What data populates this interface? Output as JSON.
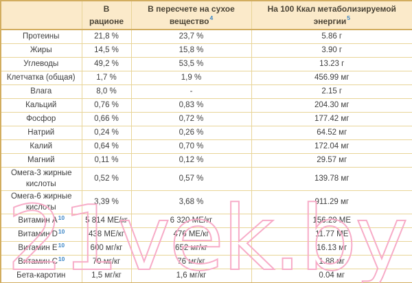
{
  "table": {
    "column_headers": [
      {
        "label": "",
        "sup": null
      },
      {
        "label": "В рационе",
        "sup": null
      },
      {
        "label": "В пересчете на сухое вещество",
        "sup": "4"
      },
      {
        "label": "На 100 Ккал метаболизируемой энергии",
        "sup": "5"
      }
    ],
    "rows": [
      {
        "label": "Протеины",
        "sup": null,
        "in_ration": "21,8 %",
        "dry_matter": "23,7 %",
        "per_100_kcal": "5.86 г"
      },
      {
        "label": "Жиры",
        "sup": null,
        "in_ration": "14,5 %",
        "dry_matter": "15,8 %",
        "per_100_kcal": "3.90 г"
      },
      {
        "label": "Углеводы",
        "sup": null,
        "in_ration": "49,2 %",
        "dry_matter": "53,5 %",
        "per_100_kcal": "13.23 г"
      },
      {
        "label": "Клетчатка (общая)",
        "sup": null,
        "in_ration": "1,7 %",
        "dry_matter": "1,9 %",
        "per_100_kcal": "456.99 мг"
      },
      {
        "label": "Влага",
        "sup": null,
        "in_ration": "8,0 %",
        "dry_matter": "-",
        "per_100_kcal": "2.15 г"
      },
      {
        "label": "Кальций",
        "sup": null,
        "in_ration": "0,76 %",
        "dry_matter": "0,83 %",
        "per_100_kcal": "204.30 мг"
      },
      {
        "label": "Фосфор",
        "sup": null,
        "in_ration": "0,66 %",
        "dry_matter": "0,72 %",
        "per_100_kcal": "177.42 мг"
      },
      {
        "label": "Натрий",
        "sup": null,
        "in_ration": "0,24 %",
        "dry_matter": "0,26 %",
        "per_100_kcal": "64.52 мг"
      },
      {
        "label": "Калий",
        "sup": null,
        "in_ration": "0,64 %",
        "dry_matter": "0,70 %",
        "per_100_kcal": "172.04 мг"
      },
      {
        "label": "Магний",
        "sup": null,
        "in_ration": "0,11 %",
        "dry_matter": "0,12 %",
        "per_100_kcal": "29.57 мг"
      },
      {
        "label": "Омега-3 жирные кислоты",
        "sup": null,
        "in_ration": "0,52 %",
        "dry_matter": "0,57 %",
        "per_100_kcal": "139.78 мг"
      },
      {
        "label": "Омега-6 жирные кислоты",
        "sup": null,
        "in_ration": "3,39 %",
        "dry_matter": "3,68 %",
        "per_100_kcal": "911.29 мг"
      },
      {
        "label": "Витамин A",
        "sup": "10",
        "in_ration": "5 814 МЕ/кг",
        "dry_matter": "6 320 МЕ/кг",
        "per_100_kcal": "156.29 МЕ"
      },
      {
        "label": "Витамин D",
        "sup": "10",
        "in_ration": "438 МЕ/кг",
        "dry_matter": "476 МЕ/кг",
        "per_100_kcal": "11.77 МЕ"
      },
      {
        "label": "Витамин E",
        "sup": "10",
        "in_ration": "600 мг/кг",
        "dry_matter": "652 мг/кг",
        "per_100_kcal": "16.13 мг"
      },
      {
        "label": "Витамин C",
        "sup": "10",
        "in_ration": "70 мг/кг",
        "dry_matter": "76 мг/кг",
        "per_100_kcal": "1.88 мг"
      },
      {
        "label": "Бета-каротин",
        "sup": null,
        "in_ration": "1,5 мг/кг",
        "dry_matter": "1,6 мг/кг",
        "per_100_kcal": "0.04 мг"
      }
    ]
  },
  "watermark": {
    "text": "21vek.by",
    "color": "#f7abc7"
  },
  "colors": {
    "header_bg": "#fbeaca",
    "outer_border": "#d2ad5f",
    "inner_border": "#e8d496",
    "body_text": "#3d3d3d",
    "header_text": "#4a4335",
    "superscript_blue": "#3c86c6",
    "watermark_pink": "#f7abc7"
  }
}
